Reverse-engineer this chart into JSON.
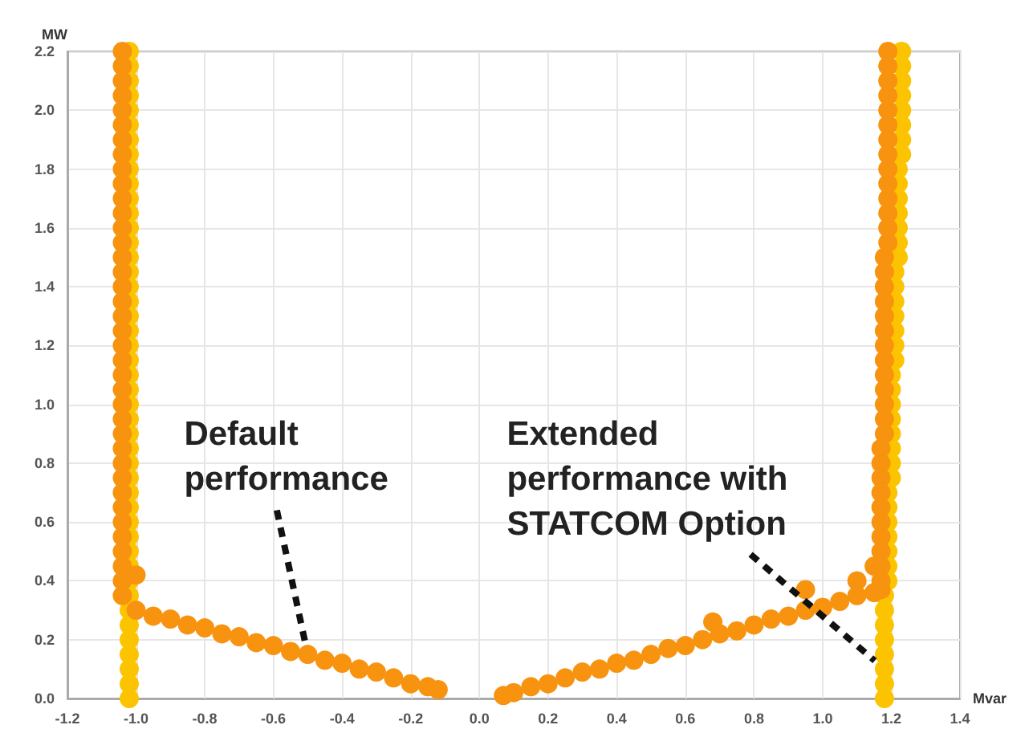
{
  "chart_data": {
    "type": "scatter",
    "xlabel": "Mvar",
    "ylabel": "MW",
    "xlim": [
      -1.2,
      1.4
    ],
    "xticks": [
      -1.2,
      {
        "value": -1.0,
        "label": "-1.0"
      },
      -0.8,
      -0.6,
      -0.4,
      -0.2,
      {
        "value": 0,
        "label": "0.0"
      },
      0.2,
      0.4,
      0.6,
      0.8,
      {
        "value": 1.0,
        "label": "1.0"
      },
      1.2,
      1.4
    ],
    "ylim": [
      0,
      2.2
    ],
    "yticks": [
      {
        "value": 0,
        "label": "0.0"
      },
      0.2,
      0.4,
      0.6,
      0.8,
      {
        "value": 1.0,
        "label": "1.0"
      },
      1.2,
      1.4,
      1.6,
      1.8,
      {
        "value": 2.0,
        "label": "2.0"
      },
      2.2
    ],
    "grid": true,
    "marker": "circle",
    "series": [
      {
        "color": "#fcc400",
        "x": [
          -1.02,
          -1.02,
          -1.02,
          -1.02,
          -1.02,
          -1.02,
          -1.02,
          -1.02,
          -1.02,
          -1.02,
          -1.02,
          -1.02,
          -1.02,
          -1.02,
          -1.02,
          -1.02,
          -1.02,
          -1.02,
          -1.02,
          -1.02,
          -1.02,
          -1.02,
          -1.02,
          -1.02,
          -1.02,
          -1.02,
          -1.02,
          -1.02,
          -1.02,
          -1.02,
          -1.02,
          -1.02,
          -1.02,
          -1.02,
          -1.02,
          -1.02,
          -1.02,
          -1.02,
          -1.02,
          -1.02,
          -1.02,
          -1.02,
          -1.02,
          -1.02,
          -1.02,
          1.18,
          1.18,
          1.18,
          1.18,
          1.18,
          1.18,
          1.18,
          1.18,
          1.19,
          1.19,
          1.19,
          1.19,
          1.19,
          1.19,
          1.19,
          1.2,
          1.2,
          1.2,
          1.2,
          1.2,
          1.2,
          1.2,
          1.2,
          1.21,
          1.21,
          1.21,
          1.21,
          1.21,
          1.21,
          1.21,
          1.22,
          1.22,
          1.22,
          1.22,
          1.22,
          1.22,
          1.22,
          1.23,
          1.23,
          1.23,
          1.23,
          1.23,
          1.23,
          1.23,
          1.23
        ],
        "values": [
          0,
          0.05,
          0.1,
          0.15,
          0.2,
          0.25,
          0.3,
          0.35,
          0.4,
          0.45,
          0.5,
          0.55,
          0.6,
          0.65,
          0.7,
          0.75,
          0.8,
          0.85,
          0.9,
          0.95,
          1.0,
          1.05,
          1.1,
          1.15,
          1.2,
          1.25,
          1.3,
          1.35,
          1.4,
          1.45,
          1.5,
          1.55,
          1.6,
          1.65,
          1.7,
          1.75,
          1.8,
          1.85,
          1.9,
          1.95,
          2.0,
          2.05,
          2.1,
          2.15,
          2.2,
          0,
          0.05,
          0.1,
          0.15,
          0.2,
          0.25,
          0.3,
          0.35,
          0.4,
          0.45,
          0.5,
          0.55,
          0.6,
          0.65,
          0.7,
          0.75,
          0.8,
          0.85,
          0.9,
          0.95,
          1.0,
          1.05,
          1.1,
          1.15,
          1.2,
          1.25,
          1.3,
          1.35,
          1.4,
          1.45,
          1.5,
          1.55,
          1.6,
          1.65,
          1.7,
          1.75,
          1.8,
          1.85,
          1.9,
          1.95,
          2.0,
          2.05,
          2.1,
          2.15,
          2.2
        ]
      },
      {
        "color": "#f7930f",
        "x": [
          -1.04,
          -1.04,
          -1.04,
          -1.04,
          -1.04,
          -1.04,
          -1.04,
          -1.04,
          -1.04,
          -1.04,
          -1.04,
          -1.04,
          -1.04,
          -1.04,
          -1.04,
          -1.04,
          -1.04,
          -1.04,
          -1.04,
          -1.04,
          -1.04,
          -1.04,
          -1.04,
          -1.04,
          -1.04,
          -1.04,
          -1.04,
          -1.04,
          -1.04,
          -1.04,
          -1.04,
          -1.04,
          -1.04,
          -1.04,
          -1.04,
          -1.04,
          -1.04,
          -1.0,
          -1.04,
          -1.0,
          -0.95,
          -0.9,
          -0.85,
          -0.8,
          -0.75,
          -0.7,
          -0.65,
          -0.6,
          -0.55,
          -0.5,
          -0.45,
          -0.4,
          -0.35,
          -0.3,
          -0.25,
          -0.2,
          -0.15,
          -0.12,
          0.07,
          0.1,
          0.15,
          0.2,
          0.25,
          0.3,
          0.35,
          0.4,
          0.45,
          0.5,
          0.55,
          0.6,
          0.65,
          0.7,
          0.75,
          0.8,
          0.85,
          0.9,
          0.95,
          1.0,
          1.05,
          1.1,
          1.15,
          1.17,
          0.68,
          0.95,
          1.1,
          1.15,
          1.17,
          1.17,
          1.17,
          1.17,
          1.17,
          1.17,
          1.17,
          1.17,
          1.17,
          1.17,
          1.18,
          1.18,
          1.18,
          1.18,
          1.18,
          1.18,
          1.18,
          1.18,
          1.18,
          1.18,
          1.18,
          1.18,
          1.18,
          1.19,
          1.19,
          1.19,
          1.19,
          1.19,
          1.19,
          1.19,
          1.19,
          1.19,
          1.19,
          1.19,
          1.19,
          1.19,
          1.19
        ],
        "values": [
          0.4,
          0.45,
          0.5,
          0.55,
          0.6,
          0.65,
          0.7,
          0.75,
          0.8,
          0.85,
          0.9,
          0.95,
          1.0,
          1.05,
          1.1,
          1.15,
          1.2,
          1.25,
          1.3,
          1.35,
          1.4,
          1.45,
          1.5,
          1.55,
          1.6,
          1.65,
          1.7,
          1.75,
          1.8,
          1.85,
          1.9,
          1.95,
          2.0,
          2.05,
          2.1,
          2.15,
          2.2,
          0.42,
          0.35,
          0.3,
          0.28,
          0.27,
          0.25,
          0.24,
          0.22,
          0.21,
          0.19,
          0.18,
          0.16,
          0.15,
          0.13,
          0.12,
          0.1,
          0.09,
          0.07,
          0.05,
          0.04,
          0.03,
          0.01,
          0.02,
          0.04,
          0.05,
          0.07,
          0.09,
          0.1,
          0.12,
          0.13,
          0.15,
          0.17,
          0.18,
          0.2,
          0.22,
          0.23,
          0.25,
          0.27,
          0.28,
          0.3,
          0.31,
          0.33,
          0.35,
          0.36,
          0.37,
          0.26,
          0.37,
          0.4,
          0.45,
          0.4,
          0.45,
          0.5,
          0.55,
          0.6,
          0.65,
          0.7,
          0.75,
          0.8,
          0.85,
          0.9,
          0.95,
          1.0,
          1.05,
          1.1,
          1.15,
          1.2,
          1.25,
          1.3,
          1.35,
          1.4,
          1.45,
          1.5,
          1.55,
          1.6,
          1.65,
          1.7,
          1.75,
          1.8,
          1.85,
          1.9,
          1.95,
          2.0,
          2.05,
          2.1,
          2.15,
          2.2
        ]
      }
    ],
    "annotations": [
      {
        "text": "Default performance",
        "x": -0.5,
        "y": 0.15
      },
      {
        "text": "Extended performance with STATCOM Option",
        "x": 1.18,
        "y": 0.1
      }
    ]
  }
}
